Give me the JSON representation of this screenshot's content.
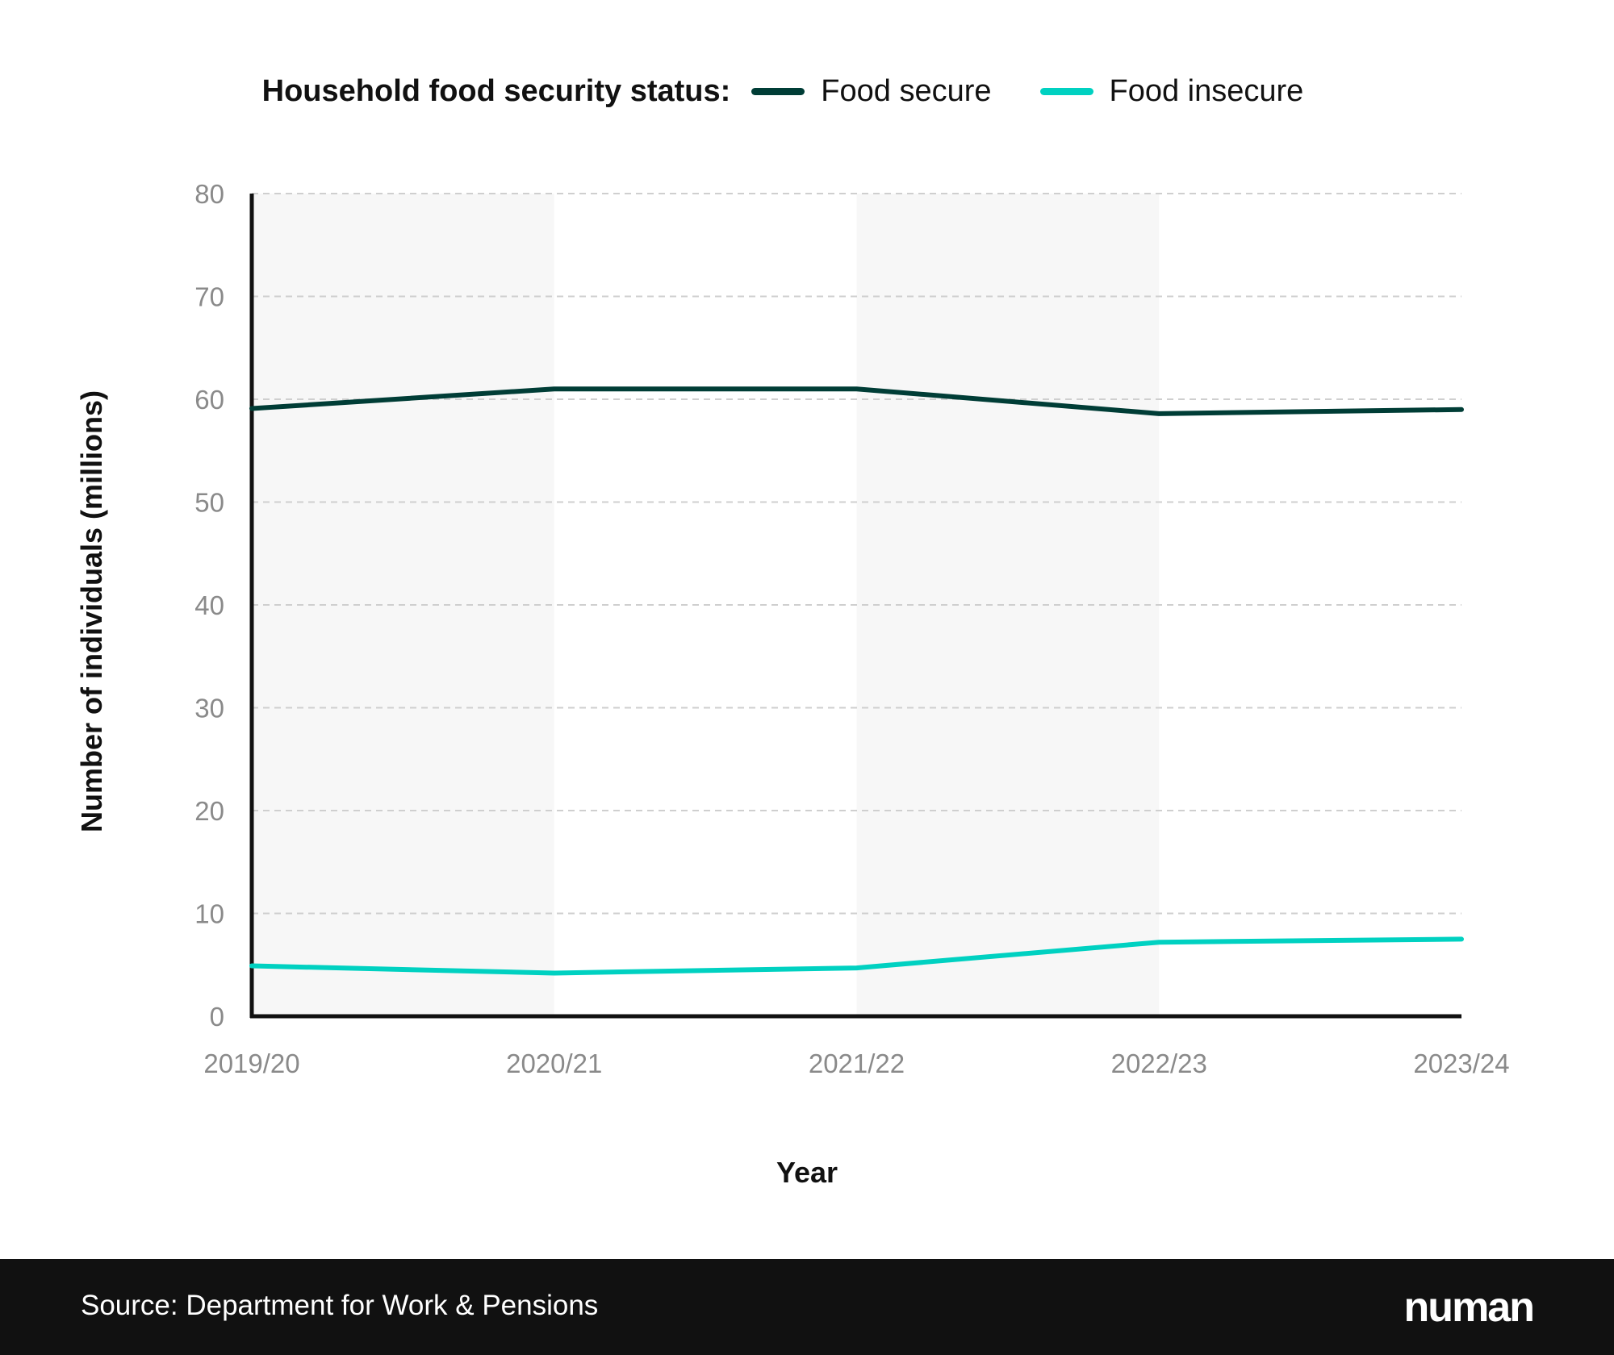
{
  "chart_data": {
    "type": "line",
    "legend_title": "Household food security status:",
    "legend_placement": "top-center",
    "categories": [
      "2019/20",
      "2020/21",
      "2021/22",
      "2022/23",
      "2023/24"
    ],
    "series": [
      {
        "name": "Food secure",
        "color": "#003d36",
        "values": [
          59.1,
          61.0,
          61.0,
          58.6,
          59.0
        ]
      },
      {
        "name": "Food insecure",
        "color": "#00d1c1",
        "values": [
          4.9,
          4.2,
          4.7,
          7.2,
          7.5
        ]
      }
    ],
    "xlabel": "Year",
    "ylabel": "Number of individuals (millions)",
    "ylim": [
      0,
      80
    ],
    "yticks": [
      0,
      10,
      20,
      30,
      40,
      50,
      60,
      70,
      80
    ],
    "grid": "horizontal dashed",
    "alternating_band_color": "#f7f7f7"
  },
  "footer": {
    "source": "Source: Department for Work & Pensions",
    "logo": "numan"
  }
}
